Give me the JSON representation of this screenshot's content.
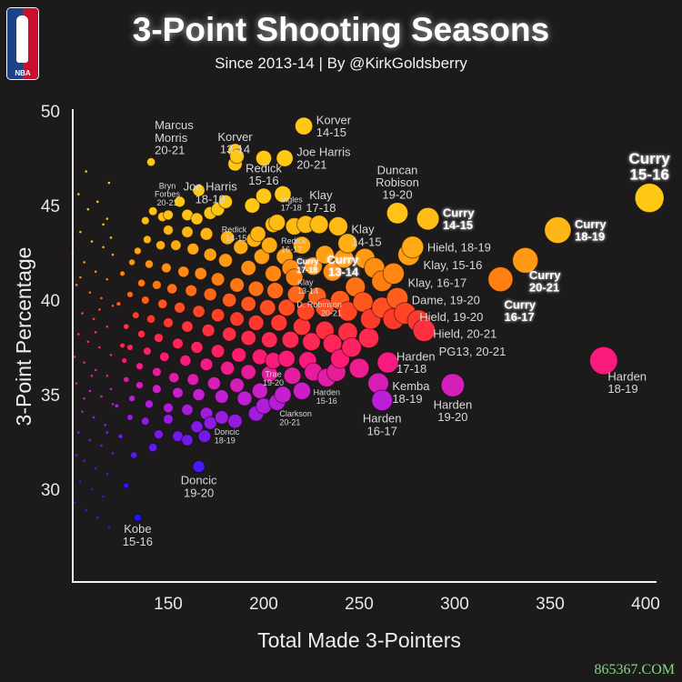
{
  "header": {
    "title": "3-Point Shooting Seasons",
    "subtitle": "Since 2013-14 | By @KirkGoldsberry",
    "logo_text": "NBA"
  },
  "watermark": "865367.COM",
  "chart_data": {
    "type": "scatter",
    "title": "3-Point Shooting Seasons",
    "xlabel": "Total Made 3-Pointers",
    "ylabel": "3-Point Percentage",
    "xlim": [
      100,
      410
    ],
    "ylim": [
      25,
      50.5
    ],
    "xticks": [
      150,
      200,
      250,
      300,
      350,
      400
    ],
    "yticks": [
      30,
      35,
      40,
      45,
      50
    ],
    "grid": false,
    "encoding": "bubble size grows with made 3-pointers; color runs blue (low %) to yellow (high %)",
    "color_scale": [
      "#2418ff",
      "#7a1ae6",
      "#c51fd2",
      "#ff1a72",
      "#ff3a2a",
      "#ff7d12",
      "#ffae14",
      "#ffc716"
    ],
    "labeled": [
      {
        "lines": [
          "Curry",
          "15-16"
        ],
        "x": 402,
        "y": 45.4,
        "pos": "above",
        "style": "hi xl"
      },
      {
        "lines": [
          "Curry",
          "18-19"
        ],
        "x": 354,
        "y": 43.7,
        "pos": "right",
        "style": "hi lg"
      },
      {
        "lines": [
          "Curry",
          "20-21"
        ],
        "x": 337,
        "y": 42.1,
        "pos": "belowright",
        "style": "hi lg"
      },
      {
        "lines": [
          "Curry",
          "16-17"
        ],
        "x": 324,
        "y": 41.1,
        "pos": "belowright",
        "style": "hi lg"
      },
      {
        "lines": [
          "Curry",
          "14-15"
        ],
        "x": 286,
        "y": 44.3,
        "pos": "right",
        "style": "hi lg"
      },
      {
        "lines": [
          "Duncan",
          "Robison",
          "19-20"
        ],
        "x": 270,
        "y": 44.6,
        "pos": "above",
        "style": "lg"
      },
      {
        "lines": [
          "Hield, 18-19"
        ],
        "x": 278,
        "y": 42.8,
        "pos": "right",
        "style": "lg"
      },
      {
        "lines": [
          "Klay, 15-16"
        ],
        "x": 276,
        "y": 42.4,
        "pos": "rightlow",
        "style": "lg"
      },
      {
        "lines": [
          "Klay, 16-17"
        ],
        "x": 268,
        "y": 41.4,
        "pos": "right",
        "style": "lg"
      },
      {
        "lines": [
          "Dame, 19-20"
        ],
        "x": 270,
        "y": 40.1,
        "pos": "right",
        "style": "lg"
      },
      {
        "lines": [
          "Hield, 19-20"
        ],
        "x": 274,
        "y": 39.3,
        "pos": "right",
        "style": "lg"
      },
      {
        "lines": [
          "Hield, 20-21"
        ],
        "x": 281,
        "y": 38.9,
        "pos": "right",
        "style": "lg"
      },
      {
        "lines": [
          "PG13, 20-21"
        ],
        "x": 284,
        "y": 38.4,
        "pos": "rightlow",
        "style": "lg"
      },
      {
        "lines": [
          "Harden",
          "17-18"
        ],
        "x": 265,
        "y": 36.7,
        "pos": "right",
        "style": "lg"
      },
      {
        "lines": [
          "Kemba",
          "18-19"
        ],
        "x": 260,
        "y": 35.6,
        "pos": "right",
        "style": "lg"
      },
      {
        "lines": [
          "Harden",
          "16-17"
        ],
        "x": 262,
        "y": 34.7,
        "pos": "below",
        "style": "lg"
      },
      {
        "lines": [
          "Harden",
          "19-20"
        ],
        "x": 299,
        "y": 35.5,
        "pos": "below",
        "style": "lg"
      },
      {
        "lines": [
          "Harden",
          "18-19"
        ],
        "x": 378,
        "y": 36.8,
        "pos": "belowright",
        "style": "lg"
      },
      {
        "lines": [
          "Korver",
          "14-15"
        ],
        "x": 221,
        "y": 49.2,
        "pos": "right",
        "style": "lg"
      },
      {
        "lines": [
          "Korver",
          "13-14"
        ],
        "x": 185,
        "y": 47.2,
        "pos": "above",
        "style": "lg"
      },
      {
        "lines": [
          "Joe Harris",
          "20-21"
        ],
        "x": 211,
        "y": 47.5,
        "pos": "right",
        "style": "lg"
      },
      {
        "lines": [
          "Marcus",
          "Morris",
          "20-21"
        ],
        "x": 141,
        "y": 47.3,
        "pos": "aboveright",
        "style": "lg"
      },
      {
        "lines": [
          "Joe Harris",
          "18-19"
        ],
        "x": 172,
        "y": 44.6,
        "pos": "above",
        "style": "lg"
      },
      {
        "lines": [
          "Bryn",
          "Forbes",
          "20-21"
        ],
        "x": 160,
        "y": 44.5,
        "pos": "above",
        "style": "sm"
      },
      {
        "lines": [
          "Redick",
          "15-16"
        ],
        "x": 200,
        "y": 45.5,
        "pos": "above",
        "style": "lg"
      },
      {
        "lines": [
          "Ingles",
          "17-18"
        ],
        "x": 207,
        "y": 44.1,
        "pos": "aboveright",
        "style": "sm"
      },
      {
        "lines": [
          "Klay",
          "17-18"
        ],
        "x": 229,
        "y": 44.0,
        "pos": "above",
        "style": "lg"
      },
      {
        "lines": [
          "Klay",
          "14-15"
        ],
        "x": 239,
        "y": 43.9,
        "pos": "rightlow",
        "style": "lg"
      },
      {
        "lines": [
          "Redick",
          "14-15"
        ],
        "x": 197,
        "y": 43.5,
        "pos": "left",
        "style": "sm"
      },
      {
        "lines": [
          "Redick",
          "16-17"
        ],
        "x": 203,
        "y": 42.9,
        "pos": "right",
        "style": "sm"
      },
      {
        "lines": [
          "Curry",
          "17-18"
        ],
        "x": 211,
        "y": 42.3,
        "pos": "right",
        "style": "hi sm"
      },
      {
        "lines": [
          "Curry",
          "13-14"
        ],
        "x": 253,
        "y": 42.2,
        "pos": "left",
        "style": "hi lg"
      },
      {
        "lines": [
          "Klay",
          "13-14"
        ],
        "x": 216,
        "y": 41.2,
        "pos": "right",
        "style": "sm"
      },
      {
        "lines": [
          "D. Robinson",
          "20-21"
        ],
        "x": 248,
        "y": 40.7,
        "pos": "left",
        "style": "sm"
      },
      {
        "lines": [
          "Trae",
          "19-20"
        ],
        "x": 205,
        "y": 36.8,
        "pos": "below",
        "style": "sm"
      },
      {
        "lines": [
          "Harden",
          "15-16"
        ],
        "x": 233,
        "y": 35.9,
        "pos": "below",
        "style": "sm"
      },
      {
        "lines": [
          "Clarkson",
          "20-21"
        ],
        "x": 207,
        "y": 34.6,
        "pos": "belowright",
        "style": "sm"
      },
      {
        "lines": [
          "Doncic",
          "18-19"
        ],
        "x": 169,
        "y": 32.8,
        "pos": "right",
        "style": "sm"
      },
      {
        "lines": [
          "Doncic",
          "19-20"
        ],
        "x": 166,
        "y": 31.2,
        "pos": "below",
        "style": "lg"
      },
      {
        "lines": [
          "Kobe",
          "15-16"
        ],
        "x": 134,
        "y": 28.5,
        "pos": "below",
        "style": "lg"
      }
    ],
    "points": [
      [
        186,
        47.6
      ],
      [
        185,
        47.9
      ],
      [
        200,
        47.5
      ],
      [
        156,
        45.2
      ],
      [
        165,
        44.3
      ],
      [
        180,
        45.2
      ],
      [
        194,
        45.0
      ],
      [
        205,
        44.0
      ],
      [
        195,
        43.2
      ],
      [
        216,
        43.9
      ],
      [
        147,
        44.4
      ],
      [
        142,
        44.7
      ],
      [
        138,
        44.2
      ],
      [
        150,
        43.7
      ],
      [
        160,
        43.6
      ],
      [
        170,
        43.5
      ],
      [
        181,
        43.3
      ],
      [
        188,
        42.8
      ],
      [
        199,
        42.3
      ],
      [
        220,
        42.9
      ],
      [
        232,
        42.4
      ],
      [
        242,
        42.2
      ],
      [
        258,
        41.7
      ],
      [
        262,
        41.0
      ],
      [
        236,
        41.5
      ],
      [
        226,
        41.8
      ],
      [
        214,
        41.7
      ],
      [
        205,
        41.4
      ],
      [
        192,
        41.7
      ],
      [
        180,
        42.1
      ],
      [
        172,
        42.4
      ],
      [
        163,
        42.7
      ],
      [
        154,
        42.9
      ],
      [
        146,
        42.9
      ],
      [
        139,
        43.2
      ],
      [
        134,
        42.6
      ],
      [
        131,
        42.0
      ],
      [
        140,
        41.9
      ],
      [
        149,
        41.7
      ],
      [
        158,
        41.5
      ],
      [
        167,
        41.4
      ],
      [
        176,
        41.1
      ],
      [
        186,
        40.8
      ],
      [
        196,
        40.6
      ],
      [
        206,
        40.5
      ],
      [
        217,
        40.3
      ],
      [
        228,
        40.2
      ],
      [
        240,
        40.0
      ],
      [
        252,
        39.9
      ],
      [
        262,
        39.6
      ],
      [
        268,
        39.0
      ],
      [
        256,
        39.0
      ],
      [
        244,
        39.4
      ],
      [
        232,
        39.6
      ],
      [
        222,
        39.4
      ],
      [
        212,
        39.6
      ],
      [
        202,
        39.6
      ],
      [
        192,
        39.8
      ],
      [
        182,
        40.0
      ],
      [
        172,
        40.3
      ],
      [
        162,
        40.5
      ],
      [
        152,
        40.6
      ],
      [
        144,
        40.8
      ],
      [
        136,
        40.9
      ],
      [
        130,
        40.3
      ],
      [
        138,
        40.0
      ],
      [
        147,
        39.8
      ],
      [
        156,
        39.6
      ],
      [
        166,
        39.4
      ],
      [
        176,
        39.2
      ],
      [
        186,
        39.0
      ],
      [
        196,
        38.8
      ],
      [
        208,
        38.8
      ],
      [
        220,
        38.6
      ],
      [
        232,
        38.4
      ],
      [
        244,
        38.3
      ],
      [
        255,
        38.0
      ],
      [
        246,
        37.5
      ],
      [
        236,
        37.7
      ],
      [
        225,
        37.8
      ],
      [
        214,
        37.9
      ],
      [
        203,
        37.9
      ],
      [
        192,
        38.0
      ],
      [
        182,
        38.2
      ],
      [
        171,
        38.4
      ],
      [
        160,
        38.6
      ],
      [
        150,
        38.8
      ],
      [
        141,
        39.0
      ],
      [
        133,
        39.2
      ],
      [
        128,
        38.6
      ],
      [
        136,
        38.2
      ],
      [
        145,
        38.0
      ],
      [
        155,
        37.7
      ],
      [
        165,
        37.5
      ],
      [
        176,
        37.3
      ],
      [
        187,
        37.1
      ],
      [
        198,
        37.0
      ],
      [
        212,
        36.9
      ],
      [
        223,
        36.8
      ],
      [
        240,
        36.9
      ],
      [
        250,
        36.4
      ],
      [
        238,
        36.2
      ],
      [
        226,
        36.2
      ],
      [
        215,
        36.0
      ],
      [
        203,
        36.1
      ],
      [
        192,
        36.2
      ],
      [
        181,
        36.4
      ],
      [
        170,
        36.6
      ],
      [
        159,
        36.8
      ],
      [
        148,
        37.0
      ],
      [
        139,
        37.3
      ],
      [
        130,
        37.5
      ],
      [
        127,
        36.8
      ],
      [
        135,
        36.5
      ],
      [
        144,
        36.2
      ],
      [
        153,
        35.9
      ],
      [
        163,
        35.8
      ],
      [
        174,
        35.6
      ],
      [
        186,
        35.5
      ],
      [
        198,
        35.2
      ],
      [
        210,
        35.0
      ],
      [
        220,
        35.2
      ],
      [
        200,
        34.4
      ],
      [
        190,
        34.8
      ],
      [
        178,
        34.9
      ],
      [
        166,
        35.0
      ],
      [
        155,
        35.1
      ],
      [
        144,
        35.3
      ],
      [
        135,
        35.5
      ],
      [
        128,
        35.8
      ],
      [
        131,
        34.8
      ],
      [
        140,
        34.5
      ],
      [
        150,
        34.3
      ],
      [
        160,
        34.2
      ],
      [
        170,
        34.0
      ],
      [
        178,
        33.8
      ],
      [
        196,
        34.0
      ],
      [
        185,
        33.6
      ],
      [
        165,
        33.3
      ],
      [
        150,
        33.7
      ],
      [
        138,
        33.6
      ],
      [
        130,
        33.8
      ],
      [
        145,
        32.9
      ],
      [
        155,
        32.8
      ],
      [
        160,
        32.6
      ],
      [
        172,
        33.5
      ],
      [
        132,
        31.8
      ],
      [
        128,
        30.2
      ],
      [
        125,
        32.8
      ],
      [
        142,
        32.2
      ],
      [
        244,
        43.0
      ],
      [
        222,
        44.0
      ],
      [
        210,
        45.6
      ],
      [
        176,
        44.8
      ],
      [
        166,
        45.8
      ],
      [
        150,
        44.5
      ],
      [
        126,
        41.4
      ],
      [
        124,
        39.8
      ],
      [
        126,
        37.6
      ],
      [
        123,
        34.4
      ]
    ],
    "small_points": [
      [
        103,
        45.6
      ],
      [
        108,
        44.8
      ],
      [
        113,
        45.2
      ],
      [
        118,
        44.3
      ],
      [
        104,
        43.6
      ],
      [
        110,
        43.1
      ],
      [
        116,
        42.8
      ],
      [
        121,
        42.4
      ],
      [
        106,
        42.0
      ],
      [
        112,
        41.5
      ],
      [
        118,
        41.1
      ],
      [
        102,
        40.8
      ],
      [
        109,
        40.4
      ],
      [
        115,
        40.1
      ],
      [
        121,
        39.7
      ],
      [
        105,
        39.3
      ],
      [
        111,
        39.0
      ],
      [
        118,
        38.6
      ],
      [
        103,
        38.2
      ],
      [
        108,
        37.8
      ],
      [
        114,
        37.5
      ],
      [
        120,
        37.1
      ],
      [
        106,
        36.7
      ],
      [
        112,
        36.3
      ],
      [
        118,
        36.0
      ],
      [
        102,
        35.6
      ],
      [
        109,
        35.2
      ],
      [
        115,
        34.9
      ],
      [
        121,
        34.5
      ],
      [
        105,
        34.1
      ],
      [
        111,
        33.8
      ],
      [
        117,
        33.4
      ],
      [
        103,
        33.0
      ],
      [
        109,
        32.6
      ],
      [
        115,
        32.3
      ],
      [
        121,
        31.9
      ],
      [
        106,
        31.5
      ],
      [
        112,
        31.1
      ],
      [
        118,
        30.8
      ],
      [
        104,
        30.4
      ],
      [
        110,
        30.0
      ],
      [
        116,
        29.6
      ],
      [
        101,
        29.3
      ],
      [
        107,
        28.9
      ],
      [
        113,
        28.5
      ],
      [
        119,
        28.0
      ],
      [
        100,
        42.5
      ],
      [
        101,
        37.0
      ],
      [
        102,
        31.8
      ],
      [
        119,
        46.2
      ],
      [
        107,
        46.8
      ],
      [
        114,
        39.5
      ],
      [
        110,
        36.0
      ],
      [
        116,
        44.0
      ],
      [
        120,
        35.3
      ],
      [
        104,
        41.2
      ],
      [
        112,
        38.3
      ],
      [
        118,
        33.0
      ],
      [
        106,
        34.8
      ],
      [
        120,
        43.3
      ]
    ]
  }
}
